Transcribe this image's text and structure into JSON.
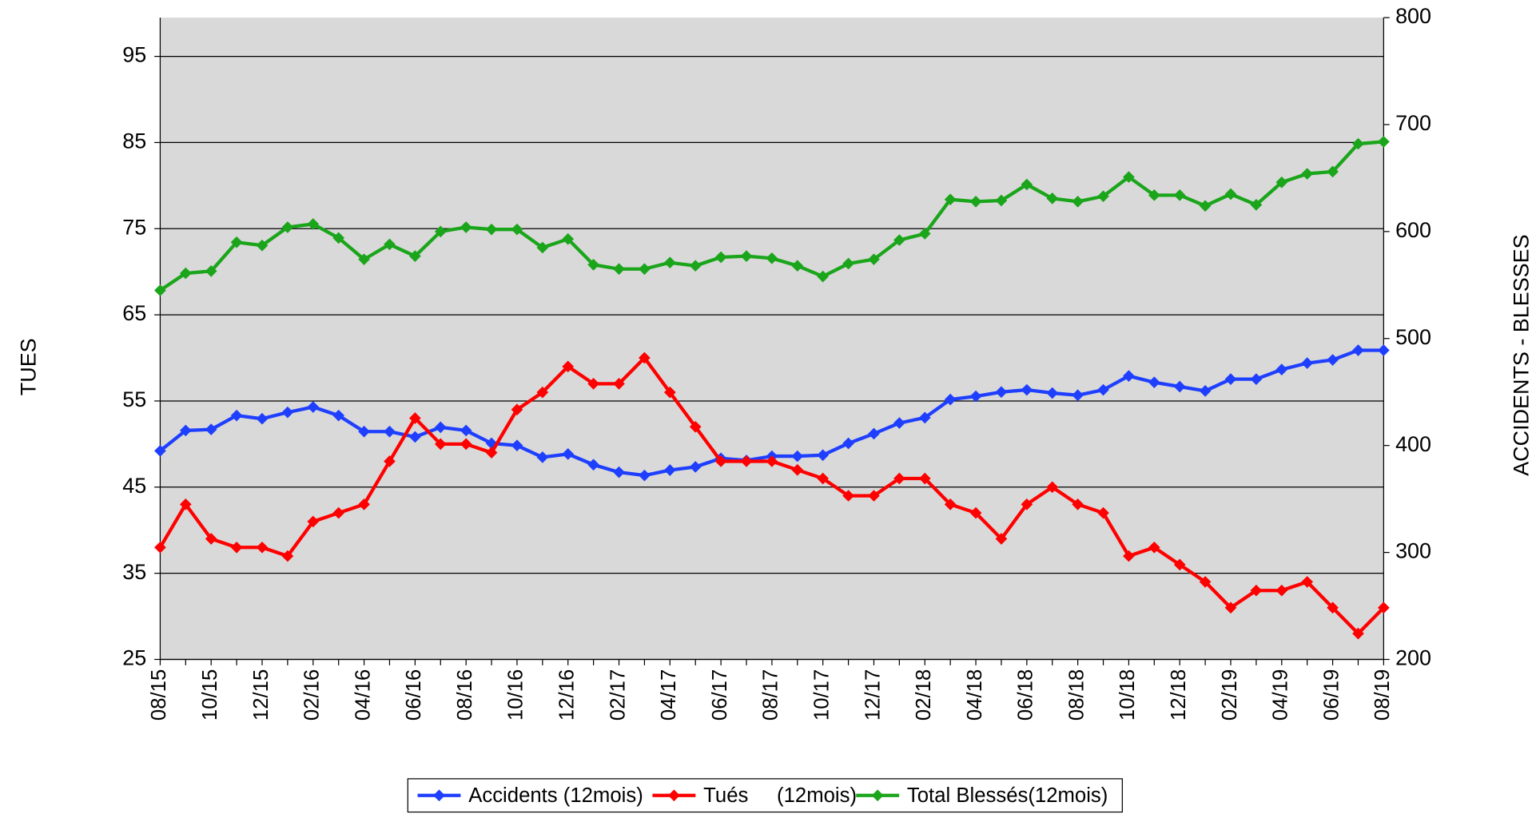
{
  "chart_data": {
    "type": "line",
    "y_label": "TUES",
    "y2_label": "ACCIDENTS - BLESSES",
    "categories": [
      "08/15",
      null,
      "10/15",
      null,
      "12/15",
      null,
      "02/16",
      null,
      "04/16",
      null,
      "06/16",
      null,
      "08/16",
      null,
      "10/16",
      null,
      "12/16",
      null,
      "02/17",
      null,
      "04/17",
      null,
      "06/17",
      null,
      "08/17",
      null,
      "10/17",
      null,
      "12/17",
      null,
      "02/18",
      null,
      "04/18",
      null,
      "06/18",
      null,
      "08/18",
      null,
      "10/18",
      null,
      "12/18",
      null,
      "02/19",
      null,
      "04/19",
      null,
      "06/19",
      null,
      "08/19"
    ],
    "series": [
      {
        "name": "Accidents (12mois)",
        "color": "#1f3fff",
        "axis": "y2",
        "values": [
          395,
          414,
          415,
          428,
          425,
          431,
          436,
          428,
          413,
          413,
          408,
          417,
          414,
          402,
          400,
          389,
          392,
          382,
          375,
          372,
          377,
          380,
          388,
          386,
          390,
          390,
          391,
          402,
          411,
          421,
          426,
          443,
          446,
          450,
          452,
          449,
          447,
          452,
          465,
          459,
          455,
          451,
          462,
          462,
          471,
          477,
          480,
          489,
          489
        ]
      },
      {
        "name": "Tués     (12mois)",
        "color": "#ff0000",
        "values": [
          38,
          43,
          39,
          38,
          38,
          37,
          41,
          42,
          43,
          48,
          53,
          50,
          50,
          49,
          54,
          56,
          59,
          57,
          57,
          60,
          56,
          52,
          48,
          48,
          48,
          47,
          46,
          44,
          44,
          46,
          46,
          43,
          42,
          39,
          43,
          45,
          43,
          42,
          37,
          38,
          36,
          34,
          31,
          33,
          33,
          34,
          31,
          28,
          31
        ]
      },
      {
        "name": "Total Blessés(12mois)",
        "color": "#1aa51a",
        "axis": "y2",
        "values": [
          545,
          561,
          563,
          590,
          587,
          604,
          607,
          594,
          574,
          588,
          577,
          600,
          604,
          602,
          602,
          585,
          593,
          569,
          565,
          565,
          571,
          568,
          576,
          577,
          575,
          568,
          558,
          570,
          574,
          592,
          598,
          630,
          628,
          629,
          644,
          631,
          628,
          633,
          651,
          634,
          634,
          624,
          635,
          625,
          646,
          654,
          656,
          682,
          684
        ]
      }
    ],
    "ylim": [
      25,
      99.5
    ],
    "yticks": [
      25,
      35,
      45,
      55,
      65,
      75,
      85,
      95
    ],
    "y2lim": [
      200,
      800
    ],
    "y2ticks": [
      200,
      300,
      400,
      500,
      600,
      700,
      800
    ],
    "grid": true,
    "legend": "bottom",
    "background": "#d9d9d9"
  }
}
